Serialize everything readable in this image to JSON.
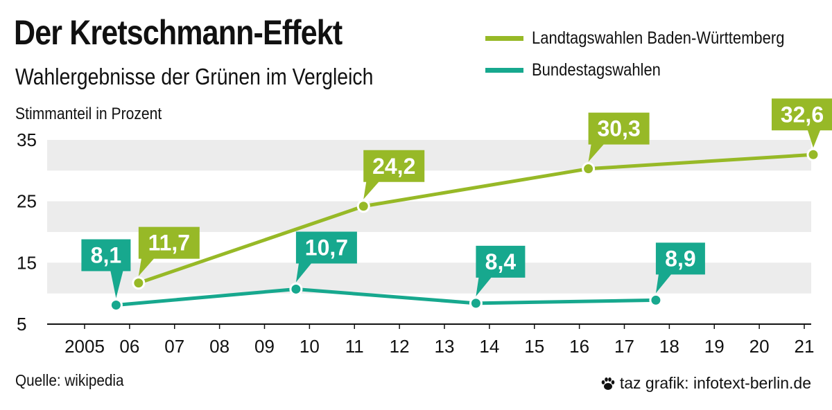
{
  "title": "Der Kretschmann-Effekt",
  "subtitle": "Wahlergebnisse der Grünen im Vergleich",
  "source": "Quelle: wikipedia",
  "credit": "taz grafik: infotext-berlin.de",
  "credit_icon": "paw-icon",
  "colors": {
    "landtag": "#97b927",
    "bundestag": "#17a88e",
    "band": "#ececec",
    "axis": "#111111"
  },
  "chart_data": {
    "type": "line",
    "title": "Der Kretschmann-Effekt",
    "subtitle": "Wahlergebnisse der Grünen im Vergleich",
    "ylabel": "Stimmanteil in Prozent",
    "xlabel": "",
    "x_ticks": [
      {
        "year": 2005,
        "label": "2005"
      },
      {
        "year": 2006,
        "label": "06"
      },
      {
        "year": 2007,
        "label": "07"
      },
      {
        "year": 2008,
        "label": "08"
      },
      {
        "year": 2009,
        "label": "09"
      },
      {
        "year": 2010,
        "label": "10"
      },
      {
        "year": 2011,
        "label": "11"
      },
      {
        "year": 2012,
        "label": "12"
      },
      {
        "year": 2013,
        "label": "13"
      },
      {
        "year": 2014,
        "label": "14"
      },
      {
        "year": 2015,
        "label": "15"
      },
      {
        "year": 2016,
        "label": "16"
      },
      {
        "year": 2017,
        "label": "17"
      },
      {
        "year": 2018,
        "label": "18"
      },
      {
        "year": 2019,
        "label": "19"
      },
      {
        "year": 2020,
        "label": "20"
      },
      {
        "year": 2021,
        "label": "21"
      }
    ],
    "xlim": [
      2005,
      2021
    ],
    "y_ticks": [
      5,
      15,
      25,
      35
    ],
    "ylim": [
      5,
      35
    ],
    "legend_position": "top-right",
    "series": [
      {
        "key": "landtag",
        "name": "Landtagswahlen Baden-Württemberg",
        "points": [
          {
            "x": 2006.2,
            "y": 11.7,
            "label": "11,7"
          },
          {
            "x": 2011.2,
            "y": 24.2,
            "label": "24,2"
          },
          {
            "x": 2016.2,
            "y": 30.3,
            "label": "30,3"
          },
          {
            "x": 2021.2,
            "y": 32.6,
            "label": "32,6"
          }
        ]
      },
      {
        "key": "bundestag",
        "name": "Bundestagswahlen",
        "points": [
          {
            "x": 2005.7,
            "y": 8.1,
            "label": "8,1"
          },
          {
            "x": 2009.7,
            "y": 10.7,
            "label": "10,7"
          },
          {
            "x": 2013.7,
            "y": 8.4,
            "label": "8,4"
          },
          {
            "x": 2017.7,
            "y": 8.9,
            "label": "8,9"
          }
        ]
      }
    ]
  }
}
